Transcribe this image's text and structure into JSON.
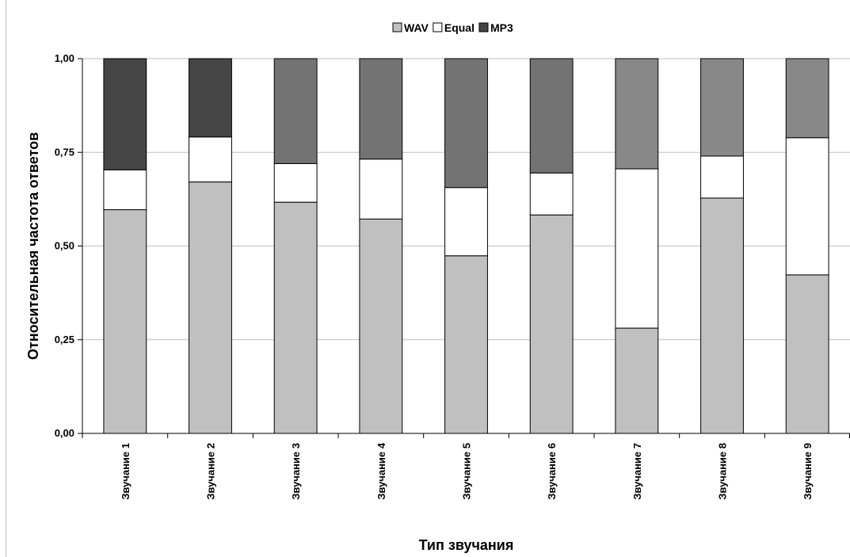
{
  "chart_data": {
    "type": "bar",
    "stacked": true,
    "title": "",
    "xlabel": "Тип звучания",
    "ylabel": "Относительная частота ответов",
    "ylim": [
      0,
      1
    ],
    "yticks": [
      "0,00",
      "0,25",
      "0,50",
      "0,75",
      "1,00"
    ],
    "grid": true,
    "legend_position": "top-center",
    "categories": [
      "Звучание 1",
      "Звучание 2",
      "Звучание 3",
      "Звучание 4",
      "Звучание 5",
      "Звучание 6",
      "Звучание 7",
      "Звучание 8",
      "Звучание 9"
    ],
    "series": [
      {
        "name": "WAV",
        "color": "#c0c0c0",
        "values": [
          0.597,
          0.671,
          0.617,
          0.572,
          0.474,
          0.583,
          0.281,
          0.628,
          0.423
        ]
      },
      {
        "name": "Equal",
        "color": "#ffffff",
        "values": [
          0.106,
          0.12,
          0.103,
          0.16,
          0.182,
          0.112,
          0.425,
          0.112,
          0.366
        ]
      },
      {
        "name": "MP3",
        "color": "#737373",
        "values": [
          0.297,
          0.209,
          0.28,
          0.268,
          0.344,
          0.305,
          0.294,
          0.26,
          0.211
        ]
      }
    ],
    "mp3_colors_per_category": [
      "#454545",
      "#454545",
      "#737373",
      "#737373",
      "#737373",
      "#737373",
      "#888888",
      "#888888",
      "#888888"
    ]
  }
}
